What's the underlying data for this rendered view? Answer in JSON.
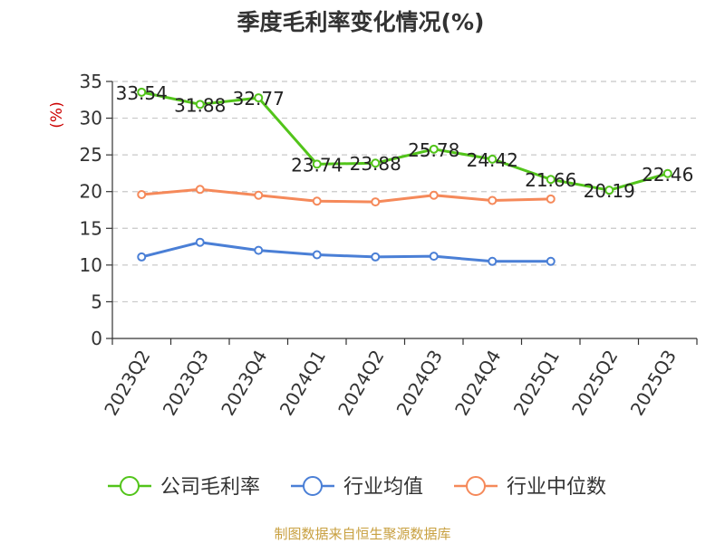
{
  "chart_data": {
    "type": "line",
    "title": "季度毛利率变化情况(%)",
    "ylabel": "(%)",
    "xlabel": "",
    "ylim": [
      0,
      35
    ],
    "yticks": [
      0,
      5,
      10,
      15,
      20,
      25,
      30,
      35
    ],
    "grid": true,
    "categories": [
      "2023Q2",
      "2023Q3",
      "2023Q4",
      "2024Q1",
      "2024Q2",
      "2024Q3",
      "2024Q4",
      "2025Q1",
      "2025Q2",
      "2025Q3"
    ],
    "series": [
      {
        "name": "公司毛利率",
        "color": "#52c41a",
        "values": [
          33.54,
          31.88,
          32.77,
          23.74,
          23.88,
          25.78,
          24.42,
          21.66,
          20.19,
          22.46
        ],
        "labels": [
          "33.54",
          "31.88",
          "32.77",
          "23.74",
          "23.88",
          "25.78",
          "24.42",
          "21.66",
          "20.19",
          "22.46"
        ]
      },
      {
        "name": "行业均值",
        "color": "#4a7fd6",
        "values": [
          11.1,
          13.1,
          12.0,
          11.4,
          11.1,
          11.2,
          10.5,
          10.5,
          null,
          null
        ]
      },
      {
        "name": "行业中位数",
        "color": "#f5895a",
        "values": [
          19.6,
          20.3,
          19.5,
          18.7,
          18.6,
          19.5,
          18.8,
          19.0,
          null,
          null
        ]
      }
    ],
    "legend": "bottom-center",
    "source": "制图数据来自恒生聚源数据库"
  }
}
